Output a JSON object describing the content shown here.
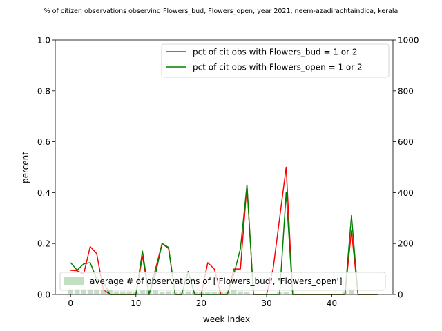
{
  "chart_data": {
    "type": "line",
    "title": "% of citizen observations observing Flowers_bud, Flowers_open, year 2021, neem-azadirachtaindica, kerala",
    "xlabel": "week index",
    "ylabel": "percent",
    "xlim": [
      -2.35,
      49.35
    ],
    "ylim": [
      0,
      1.0
    ],
    "y2lim": [
      0,
      1000
    ],
    "xticks": [
      0,
      10,
      20,
      30,
      40
    ],
    "yticks": [
      0.0,
      0.2,
      0.4,
      0.6,
      0.8,
      1.0
    ],
    "y2ticks": [
      0,
      200,
      400,
      600,
      800,
      1000
    ],
    "x": [
      0,
      1,
      2,
      3,
      4,
      5,
      6,
      7,
      8,
      9,
      10,
      11,
      12,
      13,
      14,
      15,
      16,
      17,
      18,
      19,
      20,
      21,
      22,
      23,
      24,
      25,
      26,
      27,
      28,
      29,
      30,
      31,
      32,
      33,
      34,
      35,
      36,
      37,
      38,
      39,
      40,
      41,
      42,
      43,
      44,
      45,
      46,
      47
    ],
    "series": [
      {
        "name": "pct of cit obs with Flowers_bud = 1 or 2",
        "color": "#ff0000",
        "values": [
          0.095,
          0.093,
          0.08,
          0.188,
          0.16,
          0.02,
          0.0,
          0.0,
          0.0,
          0.0,
          0.0,
          0.15,
          0.0,
          0.1,
          0.2,
          0.18,
          0.0,
          0.0,
          0.09,
          0.0,
          0.0,
          0.125,
          0.1,
          0.0,
          0.0,
          0.1,
          0.1,
          0.43,
          0.0,
          0.0,
          0.0,
          0.1,
          0.3,
          0.5,
          0.0,
          0.0,
          0.0,
          0.0,
          0.0,
          0.0,
          0.0,
          0.0,
          0.0,
          0.25,
          0.0,
          0.0,
          0.0,
          0.0
        ]
      },
      {
        "name": "pct of cit obs with Flowers_open = 1 or 2",
        "color": "#008000",
        "values": [
          0.125,
          0.095,
          0.12,
          0.125,
          0.06,
          0.05,
          0.0,
          0.0,
          0.0,
          0.0,
          0.0,
          0.17,
          0.0,
          0.08,
          0.2,
          0.185,
          0.0,
          0.0,
          0.09,
          0.0,
          0.0,
          0.0,
          0.0,
          0.0,
          0.0,
          0.08,
          0.18,
          0.43,
          0.0,
          0.0,
          0.0,
          0.0,
          0.0,
          0.4,
          0.0,
          0.0,
          0.0,
          0.0,
          0.0,
          0.0,
          0.0,
          0.0,
          0.0,
          0.31,
          0.0,
          0.0,
          0.0,
          0.0
        ]
      }
    ],
    "bars": {
      "name": "average # of observations of ['Flowers_bud', 'Flowers_open']",
      "color": "#c2dfc2",
      "axis": "right",
      "values": [
        22,
        22,
        22,
        22,
        22,
        20,
        20,
        12,
        12,
        12,
        10,
        15,
        15,
        15,
        10,
        12,
        10,
        8,
        12,
        8,
        8,
        8,
        8,
        8,
        8,
        20,
        12,
        8,
        0,
        0,
        0,
        0,
        10,
        8,
        0,
        0,
        0,
        0,
        0,
        0,
        0,
        0,
        12,
        20,
        0,
        0,
        0,
        0
      ]
    },
    "legend_upper_position": "top-right",
    "legend_lower_position": "lower-left"
  }
}
